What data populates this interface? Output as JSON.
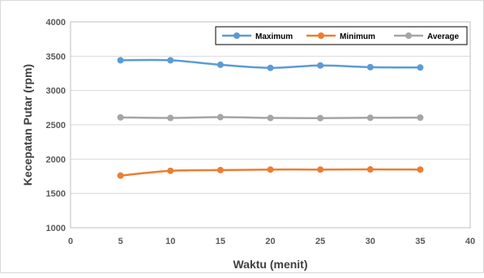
{
  "chart_data": {
    "type": "line",
    "title": "",
    "xlabel": "Waktu (menit)",
    "ylabel": "Kecepatan Putar (rpm)",
    "xlim": [
      0,
      40
    ],
    "ylim": [
      1000,
      4000
    ],
    "x_ticks": [
      0,
      5,
      10,
      15,
      20,
      25,
      30,
      35,
      40
    ],
    "y_ticks": [
      1000,
      1500,
      2000,
      2500,
      3000,
      3500,
      4000
    ],
    "grid": "horizontal",
    "legend_position": "top-right",
    "x": [
      5,
      10,
      15,
      20,
      25,
      30,
      35
    ],
    "series": [
      {
        "name": "Maximum",
        "color": "#5b9bd5",
        "values": [
          3440,
          3440,
          3375,
          3330,
          3365,
          3340,
          3335
        ]
      },
      {
        "name": "Minimum",
        "color": "#ed7d31",
        "values": [
          1760,
          1830,
          1840,
          1848,
          1848,
          1850,
          1848
        ]
      },
      {
        "name": "Average",
        "color": "#a5a5a5",
        "values": [
          2608,
          2600,
          2612,
          2600,
          2598,
          2603,
          2605
        ]
      }
    ]
  }
}
